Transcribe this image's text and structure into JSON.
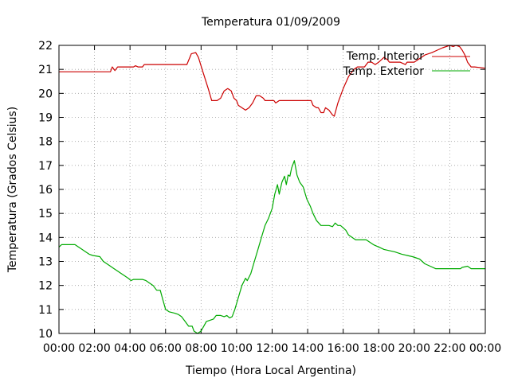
{
  "chart_data": {
    "type": "line",
    "title": "Temperatura 01/09/2009",
    "xlabel": "Tiempo (Hora Local Argentina)",
    "ylabel": "Temperatura (Grados Celsius)",
    "xlim": [
      0,
      24
    ],
    "ylim": [
      10,
      22
    ],
    "x_tick_labels": [
      "00:00",
      "02:00",
      "04:00",
      "06:00",
      "08:00",
      "10:00",
      "12:00",
      "14:00",
      "16:00",
      "18:00",
      "20:00",
      "22:00",
      "00:00"
    ],
    "y_ticks": [
      10,
      11,
      12,
      13,
      14,
      15,
      16,
      17,
      18,
      19,
      20,
      21,
      22
    ],
    "grid": true,
    "legend_position": "top-right",
    "series": [
      {
        "name": "Temp. Interior",
        "color": "#cc0000",
        "points": [
          [
            0,
            20.9
          ],
          [
            2.9,
            20.9
          ],
          [
            3.0,
            21.1
          ],
          [
            3.15,
            20.95
          ],
          [
            3.3,
            21.1
          ],
          [
            4.2,
            21.1
          ],
          [
            4.3,
            21.15
          ],
          [
            4.45,
            21.1
          ],
          [
            4.7,
            21.1
          ],
          [
            4.8,
            21.2
          ],
          [
            7.2,
            21.2
          ],
          [
            7.45,
            21.65
          ],
          [
            7.7,
            21.7
          ],
          [
            7.85,
            21.5
          ],
          [
            8.1,
            20.9
          ],
          [
            8.4,
            20.2
          ],
          [
            8.6,
            19.7
          ],
          [
            8.9,
            19.7
          ],
          [
            9.1,
            19.8
          ],
          [
            9.3,
            20.1
          ],
          [
            9.5,
            20.2
          ],
          [
            9.7,
            20.1
          ],
          [
            9.85,
            19.8
          ],
          [
            10.0,
            19.7
          ],
          [
            10.1,
            19.5
          ],
          [
            10.3,
            19.4
          ],
          [
            10.5,
            19.3
          ],
          [
            10.7,
            19.4
          ],
          [
            10.9,
            19.6
          ],
          [
            11.1,
            19.9
          ],
          [
            11.3,
            19.9
          ],
          [
            11.5,
            19.8
          ],
          [
            11.6,
            19.7
          ],
          [
            12.1,
            19.7
          ],
          [
            12.2,
            19.6
          ],
          [
            12.4,
            19.7
          ],
          [
            14.2,
            19.7
          ],
          [
            14.3,
            19.5
          ],
          [
            14.5,
            19.4
          ],
          [
            14.6,
            19.4
          ],
          [
            14.75,
            19.2
          ],
          [
            14.9,
            19.2
          ],
          [
            15.0,
            19.4
          ],
          [
            15.2,
            19.3
          ],
          [
            15.4,
            19.1
          ],
          [
            15.5,
            19.05
          ],
          [
            15.7,
            19.6
          ],
          [
            16.0,
            20.2
          ],
          [
            16.3,
            20.7
          ],
          [
            16.6,
            21.0
          ],
          [
            16.8,
            21.1
          ],
          [
            17.2,
            21.1
          ],
          [
            17.4,
            21.3
          ],
          [
            17.6,
            21.3
          ],
          [
            17.8,
            21.2
          ],
          [
            18.0,
            21.3
          ],
          [
            18.15,
            21.4
          ],
          [
            18.3,
            21.5
          ],
          [
            18.5,
            21.4
          ],
          [
            18.6,
            21.3
          ],
          [
            19.2,
            21.3
          ],
          [
            19.5,
            21.2
          ],
          [
            19.6,
            21.3
          ],
          [
            20.0,
            21.3
          ],
          [
            20.2,
            21.4
          ],
          [
            20.4,
            21.5
          ],
          [
            20.6,
            21.6
          ],
          [
            21.0,
            21.7
          ],
          [
            21.3,
            21.8
          ],
          [
            21.6,
            21.9
          ],
          [
            21.8,
            21.95
          ],
          [
            22.0,
            22.0
          ],
          [
            22.2,
            21.95
          ],
          [
            22.35,
            22.0
          ],
          [
            22.55,
            21.95
          ],
          [
            22.7,
            21.8
          ],
          [
            22.85,
            21.6
          ],
          [
            23.0,
            21.3
          ],
          [
            23.2,
            21.1
          ],
          [
            23.4,
            21.1
          ],
          [
            24.0,
            21.05
          ]
        ]
      },
      {
        "name": "Temp. Exterior",
        "color": "#00aa00",
        "points": [
          [
            0,
            13.6
          ],
          [
            0.15,
            13.7
          ],
          [
            0.9,
            13.7
          ],
          [
            1.1,
            13.6
          ],
          [
            1.3,
            13.5
          ],
          [
            1.5,
            13.4
          ],
          [
            1.7,
            13.3
          ],
          [
            1.9,
            13.25
          ],
          [
            2.3,
            13.2
          ],
          [
            2.5,
            13.0
          ],
          [
            2.7,
            12.9
          ],
          [
            2.9,
            12.8
          ],
          [
            3.1,
            12.7
          ],
          [
            3.3,
            12.6
          ],
          [
            3.5,
            12.5
          ],
          [
            3.7,
            12.4
          ],
          [
            3.9,
            12.3
          ],
          [
            4.05,
            12.2
          ],
          [
            4.2,
            12.25
          ],
          [
            4.7,
            12.25
          ],
          [
            4.9,
            12.2
          ],
          [
            5.1,
            12.1
          ],
          [
            5.3,
            12.0
          ],
          [
            5.5,
            11.8
          ],
          [
            5.7,
            11.8
          ],
          [
            5.85,
            11.4
          ],
          [
            6.0,
            11.0
          ],
          [
            6.2,
            10.9
          ],
          [
            6.5,
            10.85
          ],
          [
            6.7,
            10.8
          ],
          [
            6.9,
            10.7
          ],
          [
            7.1,
            10.5
          ],
          [
            7.3,
            10.3
          ],
          [
            7.5,
            10.3
          ],
          [
            7.6,
            10.1
          ],
          [
            7.8,
            10.0
          ],
          [
            8.0,
            10.1
          ],
          [
            8.15,
            10.3
          ],
          [
            8.3,
            10.5
          ],
          [
            8.5,
            10.55
          ],
          [
            8.7,
            10.6
          ],
          [
            8.85,
            10.75
          ],
          [
            9.1,
            10.75
          ],
          [
            9.3,
            10.7
          ],
          [
            9.45,
            10.75
          ],
          [
            9.6,
            10.65
          ],
          [
            9.75,
            10.7
          ],
          [
            9.9,
            11.0
          ],
          [
            10.1,
            11.5
          ],
          [
            10.3,
            12.0
          ],
          [
            10.5,
            12.3
          ],
          [
            10.6,
            12.2
          ],
          [
            10.8,
            12.5
          ],
          [
            11.0,
            13.0
          ],
          [
            11.2,
            13.5
          ],
          [
            11.4,
            14.0
          ],
          [
            11.6,
            14.5
          ],
          [
            11.8,
            14.8
          ],
          [
            12.0,
            15.2
          ],
          [
            12.15,
            15.8
          ],
          [
            12.3,
            16.2
          ],
          [
            12.4,
            15.8
          ],
          [
            12.55,
            16.3
          ],
          [
            12.7,
            16.55
          ],
          [
            12.8,
            16.2
          ],
          [
            12.9,
            16.6
          ],
          [
            13.0,
            16.55
          ],
          [
            13.1,
            16.9
          ],
          [
            13.25,
            17.2
          ],
          [
            13.4,
            16.6
          ],
          [
            13.55,
            16.3
          ],
          [
            13.75,
            16.1
          ],
          [
            13.95,
            15.6
          ],
          [
            14.15,
            15.3
          ],
          [
            14.3,
            15.0
          ],
          [
            14.5,
            14.7
          ],
          [
            14.75,
            14.5
          ],
          [
            15.2,
            14.5
          ],
          [
            15.4,
            14.45
          ],
          [
            15.55,
            14.6
          ],
          [
            15.7,
            14.5
          ],
          [
            15.85,
            14.5
          ],
          [
            16.0,
            14.4
          ],
          [
            16.15,
            14.3
          ],
          [
            16.3,
            14.1
          ],
          [
            16.5,
            14.0
          ],
          [
            16.7,
            13.9
          ],
          [
            17.3,
            13.9
          ],
          [
            17.5,
            13.8
          ],
          [
            17.7,
            13.7
          ],
          [
            18.0,
            13.6
          ],
          [
            18.3,
            13.5
          ],
          [
            18.6,
            13.45
          ],
          [
            18.9,
            13.4
          ],
          [
            19.1,
            13.35
          ],
          [
            19.3,
            13.3
          ],
          [
            19.6,
            13.25
          ],
          [
            19.9,
            13.2
          ],
          [
            20.3,
            13.1
          ],
          [
            20.6,
            12.9
          ],
          [
            20.9,
            12.8
          ],
          [
            21.2,
            12.7
          ],
          [
            22.6,
            12.7
          ],
          [
            22.7,
            12.75
          ],
          [
            23.0,
            12.8
          ],
          [
            23.2,
            12.7
          ],
          [
            24.0,
            12.7
          ]
        ]
      }
    ]
  }
}
